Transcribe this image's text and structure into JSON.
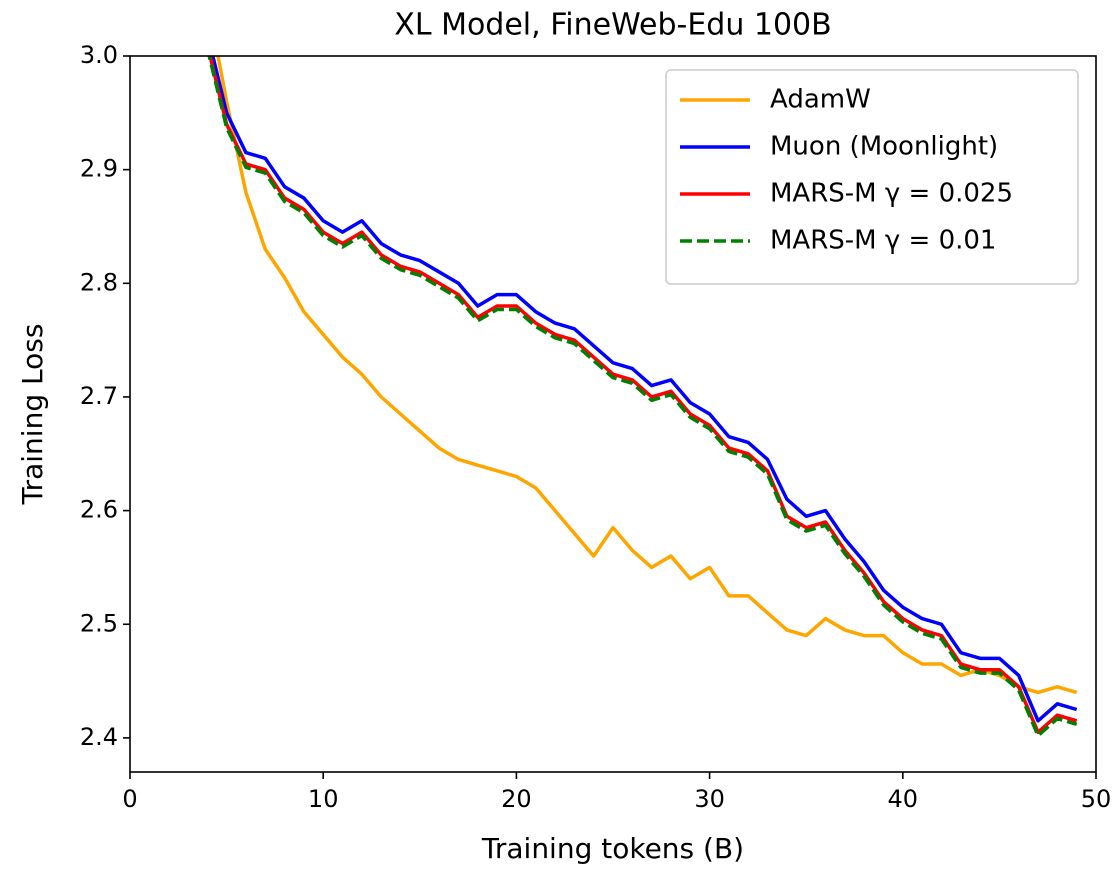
{
  "chart_data": {
    "type": "line",
    "title": "XL Model, FineWeb-Edu 100B",
    "xlabel": "Training tokens (B)",
    "ylabel": "Training Loss",
    "x": [
      4,
      5,
      6,
      7,
      8,
      9,
      10,
      11,
      12,
      13,
      14,
      15,
      16,
      17,
      18,
      19,
      20,
      21,
      22,
      23,
      24,
      25,
      26,
      27,
      28,
      29,
      30,
      31,
      32,
      33,
      34,
      35,
      36,
      37,
      38,
      39,
      40,
      41,
      42,
      43,
      44,
      45,
      46,
      47,
      48,
      49
    ],
    "series": [
      {
        "name": "AdamW",
        "color": "#ffa500",
        "dash": false,
        "values": [
          3.05,
          2.96,
          2.88,
          2.83,
          2.805,
          2.775,
          2.755,
          2.735,
          2.72,
          2.7,
          2.685,
          2.67,
          2.655,
          2.645,
          2.64,
          2.635,
          2.63,
          2.62,
          2.6,
          2.58,
          2.56,
          2.585,
          2.565,
          2.55,
          2.56,
          2.54,
          2.55,
          2.525,
          2.525,
          2.51,
          2.495,
          2.49,
          2.505,
          2.495,
          2.49,
          2.49,
          2.475,
          2.465,
          2.465,
          2.455,
          2.46,
          2.455,
          2.445,
          2.44,
          2.445,
          2.44
        ]
      },
      {
        "name": "Muon (Moonlight)",
        "color": "#0000ff",
        "dash": false,
        "values": [
          3.02,
          2.95,
          2.915,
          2.91,
          2.885,
          2.875,
          2.855,
          2.845,
          2.855,
          2.835,
          2.825,
          2.82,
          2.81,
          2.8,
          2.78,
          2.79,
          2.79,
          2.775,
          2.765,
          2.76,
          2.745,
          2.73,
          2.725,
          2.71,
          2.715,
          2.695,
          2.685,
          2.665,
          2.66,
          2.645,
          2.61,
          2.595,
          2.6,
          2.575,
          2.555,
          2.53,
          2.515,
          2.505,
          2.5,
          2.475,
          2.47,
          2.47,
          2.455,
          2.415,
          2.43,
          2.425
        ]
      },
      {
        "name": "MARS-M γ = 0.025",
        "color": "#ff0000",
        "dash": false,
        "values": [
          3.01,
          2.94,
          2.905,
          2.9,
          2.875,
          2.865,
          2.845,
          2.835,
          2.845,
          2.825,
          2.815,
          2.81,
          2.8,
          2.79,
          2.77,
          2.78,
          2.78,
          2.765,
          2.755,
          2.75,
          2.735,
          2.72,
          2.715,
          2.7,
          2.705,
          2.685,
          2.675,
          2.655,
          2.65,
          2.635,
          2.595,
          2.585,
          2.59,
          2.565,
          2.545,
          2.52,
          2.505,
          2.495,
          2.49,
          2.465,
          2.46,
          2.46,
          2.445,
          2.405,
          2.42,
          2.415
        ]
      },
      {
        "name": "MARS-M γ = 0.01",
        "color": "#008000",
        "dash": true,
        "values": [
          3.007,
          2.937,
          2.902,
          2.897,
          2.872,
          2.862,
          2.842,
          2.832,
          2.842,
          2.822,
          2.812,
          2.807,
          2.797,
          2.787,
          2.767,
          2.777,
          2.777,
          2.762,
          2.752,
          2.747,
          2.732,
          2.717,
          2.712,
          2.697,
          2.702,
          2.682,
          2.672,
          2.652,
          2.647,
          2.632,
          2.592,
          2.582,
          2.587,
          2.562,
          2.542,
          2.517,
          2.502,
          2.492,
          2.487,
          2.462,
          2.457,
          2.457,
          2.442,
          2.402,
          2.417,
          2.412
        ]
      }
    ],
    "xlim": [
      0,
      50
    ],
    "xticks": [
      0,
      10,
      20,
      30,
      40,
      50
    ],
    "ylim": [
      2.37,
      3.0
    ],
    "yticks": [
      2.4,
      2.5,
      2.6,
      2.7,
      2.8,
      2.9,
      {
        "value": 3.0,
        "label": "3.0"
      }
    ],
    "grid": false,
    "legend": "upper right"
  }
}
